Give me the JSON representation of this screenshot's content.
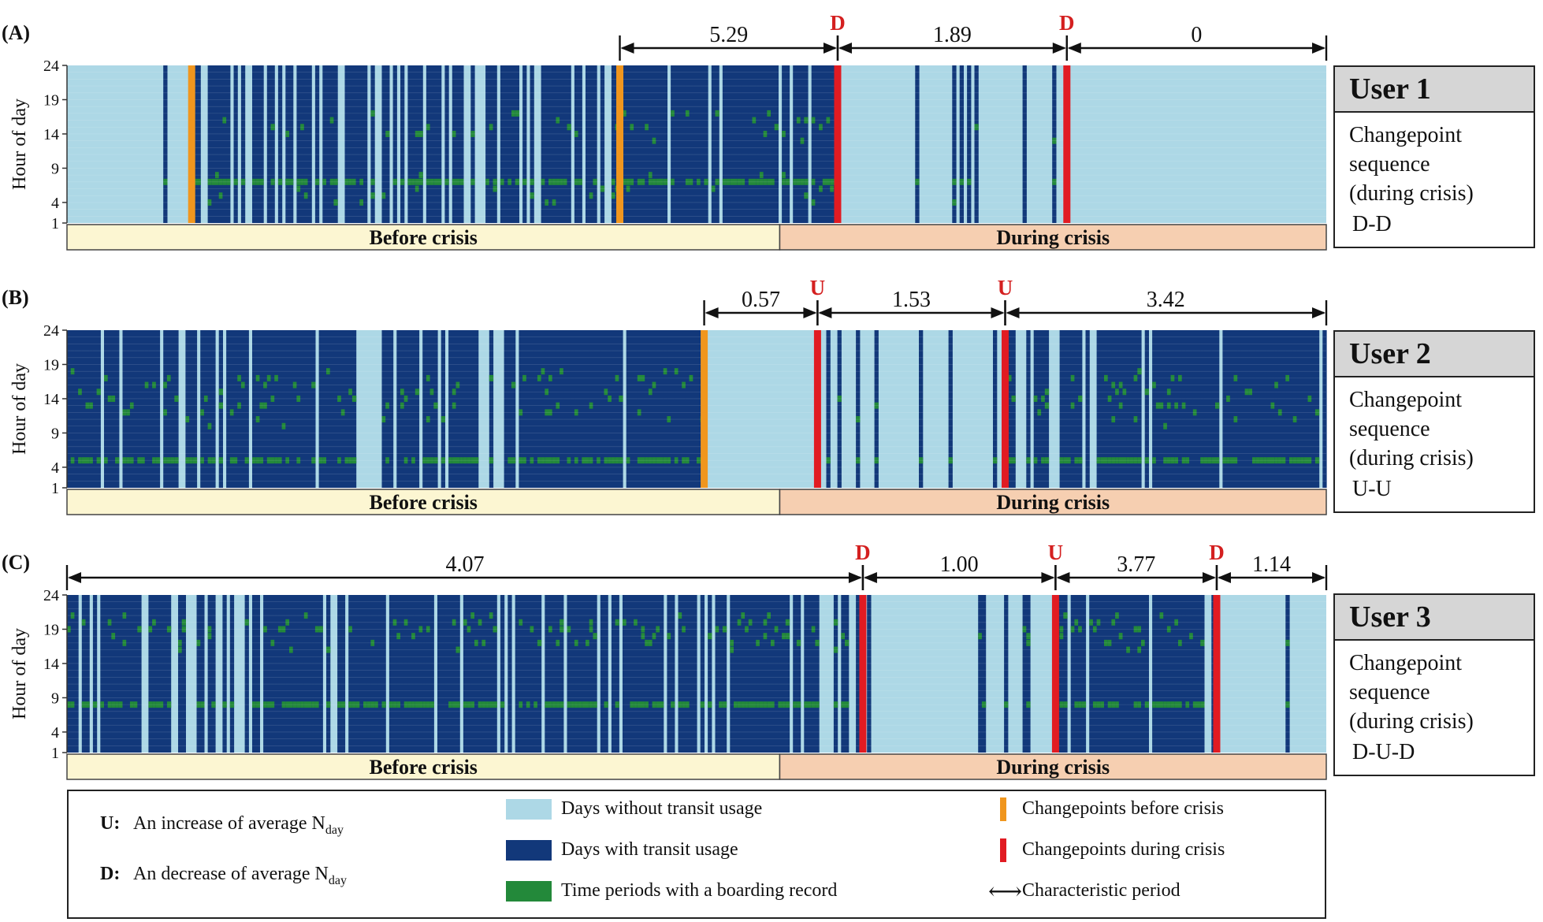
{
  "colors": {
    "no_usage": "#add8e6",
    "usage": "#12387a",
    "boarding": "#23893a",
    "cp_before": "#f0961e",
    "cp_during": "#e11b22",
    "before_band": "#fcf6d2",
    "during_band": "#f6cfb1",
    "label_red": "#d42020"
  },
  "axis": {
    "ylabel": "Hour of day",
    "yticks": [
      "24",
      "19",
      "14",
      "9",
      "4",
      "1"
    ]
  },
  "panels": [
    {
      "label": "(A)",
      "user_title": "User 1",
      "cp_text": [
        "Changepoint",
        "sequence",
        "(during crisis)"
      ],
      "sequence": "D-D",
      "before_label": "Before crisis",
      "during_label": "During crisis"
    },
    {
      "label": "(B)",
      "user_title": "User 2",
      "cp_text": [
        "Changepoint",
        "sequence",
        "(during crisis)"
      ],
      "sequence": "U-U",
      "before_label": "Before crisis",
      "during_label": "During crisis"
    },
    {
      "label": "(C)",
      "user_title": "User 3",
      "cp_text": [
        "Changepoint",
        "sequence",
        "(during crisis)"
      ],
      "sequence": "D-U-D",
      "before_label": "Before crisis",
      "during_label": "During crisis"
    }
  ],
  "chart_data": [
    {
      "type": "heatmap",
      "title": "(A)",
      "ylabel": "Hour of day",
      "yticks": [
        24,
        19,
        14,
        9,
        4,
        1
      ],
      "ylim": [
        1,
        24
      ],
      "before_crisis_fraction": 0.566,
      "changepoints": [
        {
          "type": "before",
          "position": 0.099
        },
        {
          "type": "before",
          "position": 0.439
        },
        {
          "type": "during",
          "position": 0.612,
          "label": "D"
        },
        {
          "type": "during",
          "position": 0.794,
          "label": "D"
        }
      ],
      "characteristic_periods": [
        {
          "from": 0.439,
          "to": 0.612,
          "value": "5.29"
        },
        {
          "from": 0.612,
          "to": 0.794,
          "value": "1.89"
        },
        {
          "from": 0.794,
          "to": 1.0,
          "value": "0"
        }
      ],
      "usage_density": [
        [
          0.0,
          0.099,
          0.03
        ],
        [
          0.099,
          0.439,
          0.78
        ],
        [
          0.439,
          0.612,
          0.88
        ],
        [
          0.612,
          0.794,
          0.13
        ],
        [
          0.794,
          1.0,
          0.0
        ]
      ],
      "boarding_hours": [
        7,
        6,
        15
      ]
    },
    {
      "type": "heatmap",
      "title": "(B)",
      "ylabel": "Hour of day",
      "yticks": [
        24,
        19,
        14,
        9,
        4,
        1
      ],
      "ylim": [
        1,
        24
      ],
      "before_crisis_fraction": 0.566,
      "changepoints": [
        {
          "type": "before",
          "position": 0.506
        },
        {
          "type": "during",
          "position": 0.596,
          "label": "U"
        },
        {
          "type": "during",
          "position": 0.745,
          "label": "U"
        }
      ],
      "characteristic_periods": [
        {
          "from": 0.506,
          "to": 0.596,
          "value": "0.57"
        },
        {
          "from": 0.596,
          "to": 0.745,
          "value": "1.53"
        },
        {
          "from": 0.745,
          "to": 1.0,
          "value": "3.42"
        }
      ],
      "usage_density": [
        [
          0.0,
          0.229,
          0.9
        ],
        [
          0.229,
          0.246,
          0.1
        ],
        [
          0.246,
          0.327,
          0.9
        ],
        [
          0.327,
          0.342,
          0.1
        ],
        [
          0.342,
          0.506,
          0.92
        ],
        [
          0.506,
          0.596,
          0.0
        ],
        [
          0.596,
          0.745,
          0.16
        ],
        [
          0.745,
          1.0,
          0.82
        ]
      ],
      "boarding_hours": [
        5,
        16,
        12
      ]
    },
    {
      "type": "heatmap",
      "title": "(C)",
      "ylabel": "Hour of day",
      "yticks": [
        24,
        19,
        14,
        9,
        4,
        1
      ],
      "ylim": [
        1,
        24
      ],
      "before_crisis_fraction": 0.566,
      "changepoints": [
        {
          "type": "during",
          "position": 0.632,
          "label": "D"
        },
        {
          "type": "during",
          "position": 0.785,
          "label": "U"
        },
        {
          "type": "during",
          "position": 0.913,
          "label": "D"
        }
      ],
      "characteristic_periods": [
        {
          "from": 0.0,
          "to": 0.632,
          "value": "4.07"
        },
        {
          "from": 0.632,
          "to": 0.785,
          "value": "1.00"
        },
        {
          "from": 0.785,
          "to": 0.913,
          "value": "3.77"
        },
        {
          "from": 0.913,
          "to": 1.0,
          "value": "1.14"
        }
      ],
      "usage_density": [
        [
          0.0,
          0.632,
          0.78
        ],
        [
          0.632,
          0.785,
          0.06
        ],
        [
          0.785,
          0.913,
          0.9
        ],
        [
          0.913,
          1.0,
          0.1
        ]
      ],
      "boarding_hours": [
        8,
        18,
        19
      ]
    }
  ],
  "legend": {
    "u_key": "U:",
    "u_text": "An increase of average N",
    "d_key": "D:",
    "d_text": "An decrease of average N",
    "n_sub": "day",
    "no_usage": "Days without transit usage",
    "usage": "Days with transit usage",
    "boarding": "Time periods with a boarding record",
    "cp_before": "Changepoints before crisis",
    "cp_during": "Changepoints during crisis",
    "char_period": "Characteristic period",
    "arrow_glyph": "⟷"
  }
}
